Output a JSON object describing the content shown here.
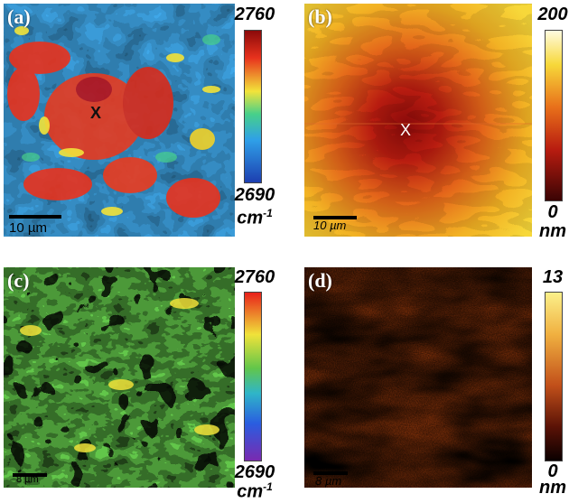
{
  "panels": [
    {
      "label": "(a)",
      "marker": "X",
      "marker_color": "#111111",
      "scale_bar_text": "10 µm",
      "colormap": "jet",
      "colorbar": {
        "max": "2760",
        "min": "2690",
        "unit": "cm",
        "unit_superscript": "-1"
      }
    },
    {
      "label": "(b)",
      "marker": "X",
      "marker_color": "#ffffff",
      "scale_bar_text": "10 µm",
      "colormap": "afmhot",
      "colorbar": {
        "max": "200",
        "min": "0",
        "unit": "nm"
      }
    },
    {
      "label": "(c)",
      "scale_bar_text": "8 µm",
      "colormap": "rainbow",
      "colorbar": {
        "max": "2760",
        "min": "2690",
        "unit": "cm",
        "unit_superscript": "-1"
      }
    },
    {
      "label": "(d)",
      "scale_bar_text": "8 µm",
      "colormap": "afmhot",
      "colorbar": {
        "max": "13",
        "min": "0",
        "unit": "nm"
      }
    }
  ]
}
